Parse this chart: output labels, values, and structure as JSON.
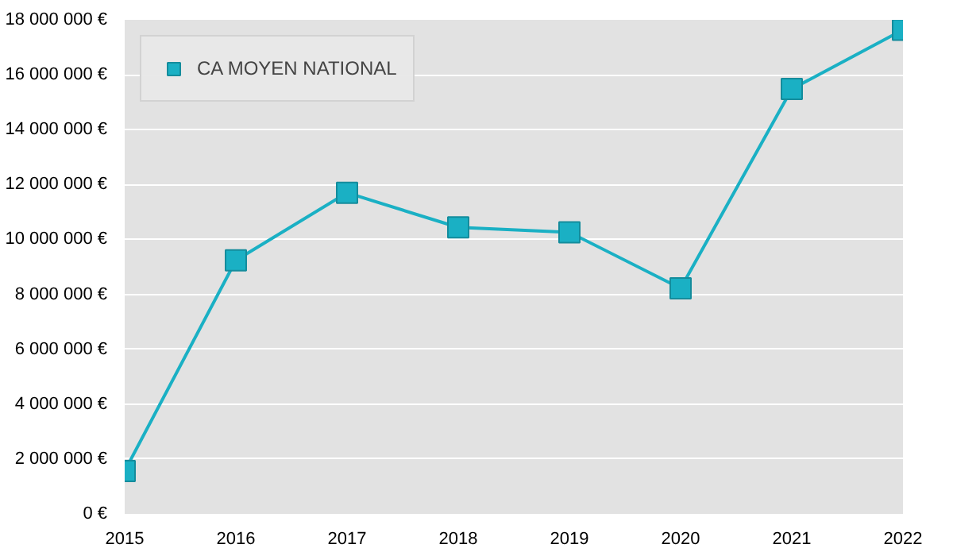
{
  "chart_data": {
    "type": "line",
    "x": [
      2015,
      2016,
      2017,
      2018,
      2019,
      2020,
      2021,
      2022
    ],
    "series": [
      {
        "name": "CA MOYEN NATIONAL",
        "color": "#1ab0c4",
        "values": [
          1560000,
          9240000,
          11700000,
          10440000,
          10260000,
          8220000,
          15480000,
          17640000
        ]
      }
    ],
    "xlim": [
      2015,
      2022
    ],
    "xticks": [
      2015,
      2016,
      2017,
      2018,
      2019,
      2020,
      2021,
      2022
    ],
    "ylim": [
      0,
      18000000
    ],
    "yticks": [
      {
        "value": 0,
        "label": "0 €"
      },
      {
        "value": 2000000,
        "label": "2 000 000 €"
      },
      {
        "value": 4000000,
        "label": "4 000 000 €"
      },
      {
        "value": 6000000,
        "label": "6 000 000 €"
      },
      {
        "value": 8000000,
        "label": "8 000 000 €"
      },
      {
        "value": 10000000,
        "label": "10 000 000 €"
      },
      {
        "value": 12000000,
        "label": "12 000 000 €"
      },
      {
        "value": 14000000,
        "label": "14 000 000 €"
      },
      {
        "value": 16000000,
        "label": "16 000 000 €"
      },
      {
        "value": 18000000,
        "label": "18 000 000 €"
      }
    ],
    "grid": "y",
    "legend": "top left",
    "marker": "square",
    "line_style": "solid"
  }
}
